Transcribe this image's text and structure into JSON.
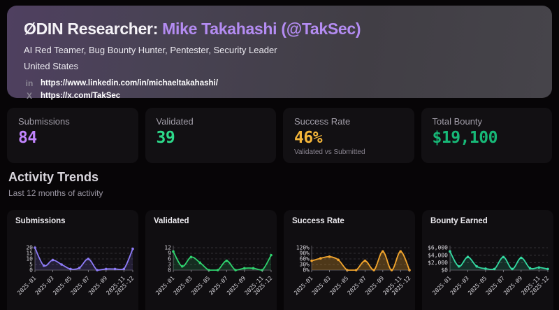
{
  "header": {
    "title_prefix": "ØDIN Researcher:",
    "title_name": "Mike Takahashi (@TakSec)",
    "subtitle": "AI Red Teamer, Bug Bounty Hunter, Pentester, Security Leader",
    "location": "United States",
    "links": [
      {
        "icon": "linkedin-icon",
        "glyph": "in",
        "url": "https://www.linkedin.com/in/michaeltakahashi/"
      },
      {
        "icon": "x-icon",
        "glyph": "X",
        "url": "https://x.com/TakSec"
      }
    ]
  },
  "stats": [
    {
      "label": "Submissions",
      "value": "84",
      "color": "#c084fc"
    },
    {
      "label": "Validated",
      "value": "39",
      "color": "#2dd98a"
    },
    {
      "label": "Success Rate",
      "value": "46%",
      "sublabel": "Validated vs Submitted",
      "color": "#f5b63a"
    },
    {
      "label": "Total Bounty",
      "value": "$19,100",
      "color": "#17b877"
    }
  ],
  "section": {
    "title": "Activity Trends",
    "subtitle": "Last 12 months of activity"
  },
  "chart_data": [
    {
      "type": "line",
      "title": "Submissions",
      "color": "#8d7bf7",
      "fill_opacity": 0.16,
      "x": [
        "2025-01",
        "2025-02",
        "2025-03",
        "2025-04",
        "2025-05",
        "2025-06",
        "2025-07",
        "2025-08",
        "2025-09",
        "2025-10",
        "2025-11",
        "2025-12"
      ],
      "values": [
        20,
        4,
        9,
        5,
        1,
        2,
        10,
        0,
        1,
        1,
        1,
        19
      ],
      "ylim": [
        0,
        20
      ],
      "yticks": [
        0,
        5,
        10,
        15,
        20
      ],
      "ytick_labels": [
        "0",
        "5",
        "10",
        "15",
        "20"
      ],
      "xtick_indices": [
        0,
        2,
        4,
        6,
        8,
        10,
        11
      ],
      "xtick_labels": [
        "2025-01",
        "2025-03",
        "2025-05",
        "2025-07",
        "2025-09",
        "2025-11",
        "2025-12"
      ],
      "grid": true,
      "legend": "none"
    },
    {
      "type": "line",
      "title": "Validated",
      "color": "#2fd36e",
      "fill_opacity": 0.16,
      "x": [
        "2025-01",
        "2025-02",
        "2025-03",
        "2025-04",
        "2025-05",
        "2025-06",
        "2025-07",
        "2025-08",
        "2025-09",
        "2025-10",
        "2025-11",
        "2025-12"
      ],
      "values": [
        10,
        2,
        7,
        4,
        0,
        0,
        5,
        0,
        1,
        1,
        0,
        8
      ],
      "ylim": [
        0,
        12
      ],
      "yticks": [
        0,
        3,
        6,
        9,
        12
      ],
      "ytick_labels": [
        "0",
        "3",
        "6",
        "9",
        "12"
      ],
      "xtick_indices": [
        0,
        2,
        4,
        6,
        8,
        10,
        11
      ],
      "xtick_labels": [
        "2025-01",
        "2025-03",
        "2025-05",
        "2025-07",
        "2025-09",
        "2025-11",
        "2025-12"
      ],
      "grid": true,
      "legend": "none"
    },
    {
      "type": "line",
      "title": "Success Rate",
      "color": "#f2a52d",
      "fill_opacity": 0.28,
      "x": [
        "2025-01",
        "2025-02",
        "2025-03",
        "2025-04",
        "2025-05",
        "2025-06",
        "2025-07",
        "2025-08",
        "2025-09",
        "2025-10",
        "2025-11",
        "2025-12"
      ],
      "values": [
        50,
        63,
        72,
        55,
        0,
        0,
        50,
        0,
        100,
        0,
        100,
        0
      ],
      "ylim": [
        0,
        120
      ],
      "yticks": [
        0,
        30,
        60,
        90,
        120
      ],
      "ytick_labels": [
        "0%",
        "30%",
        "60%",
        "90%",
        "120%"
      ],
      "xtick_indices": [
        0,
        2,
        4,
        6,
        8,
        10,
        11
      ],
      "xtick_labels": [
        "2025-01",
        "2025-03",
        "2025-05",
        "2025-07",
        "2025-09",
        "2025-11",
        "2025-12"
      ],
      "grid": true,
      "legend": "none"
    },
    {
      "type": "line",
      "title": "Bounty Earned",
      "color": "#33d9a0",
      "fill_opacity": 0.16,
      "x": [
        "2025-01",
        "2025-02",
        "2025-03",
        "2025-04",
        "2025-05",
        "2025-06",
        "2025-07",
        "2025-08",
        "2025-09",
        "2025-10",
        "2025-11",
        "2025-12"
      ],
      "values": [
        5000,
        1000,
        3500,
        1000,
        400,
        300,
        3500,
        300,
        3300,
        500,
        700,
        300
      ],
      "ylim": [
        0,
        6000
      ],
      "yticks": [
        0,
        2000,
        4000,
        6000
      ],
      "ytick_labels": [
        "$0",
        "$2,000",
        "$4,000",
        "$6,000"
      ],
      "xtick_indices": [
        0,
        2,
        4,
        6,
        8,
        10,
        11
      ],
      "xtick_labels": [
        "2025-01",
        "2025-03",
        "2025-05",
        "2025-07",
        "2025-09",
        "2025-11",
        "2025-12"
      ],
      "grid": true,
      "legend": "none"
    }
  ]
}
